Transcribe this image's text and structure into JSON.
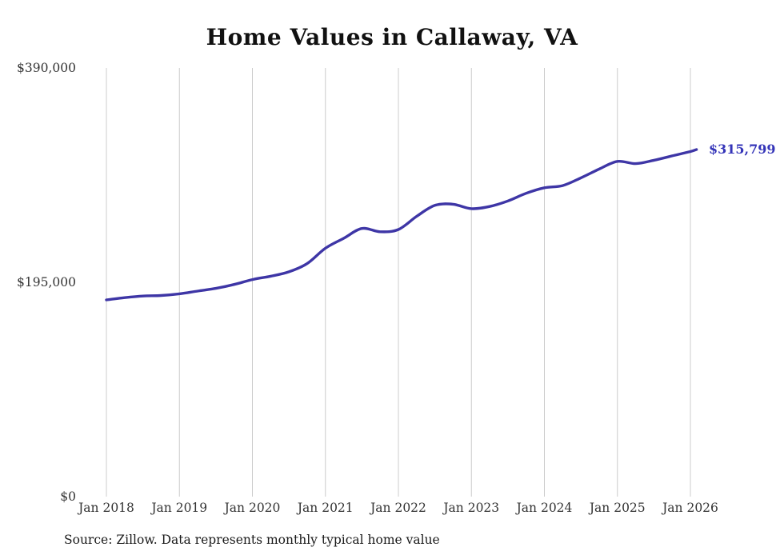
{
  "title": "Home Values in Callaway, VA",
  "end_label": "$315,799",
  "source_note": "Source: Zillow. Data represents monthly typical home value",
  "colors": {
    "line": "#3e36a6",
    "end_label": "#3434b8",
    "grid": "#cccccc",
    "tick_text": "#333333",
    "background": "#ffffff"
  },
  "chart_data": {
    "type": "line",
    "title": "Home Values in Callaway, VA",
    "series_name": "Typical home value",
    "x": [
      "2018-01",
      "2018-04",
      "2018-07",
      "2018-10",
      "2019-01",
      "2019-04",
      "2019-07",
      "2019-10",
      "2020-01",
      "2020-04",
      "2020-07",
      "2020-10",
      "2021-01",
      "2021-04",
      "2021-07",
      "2021-10",
      "2022-01",
      "2022-04",
      "2022-07",
      "2022-10",
      "2023-01",
      "2023-04",
      "2023-07",
      "2023-10",
      "2024-01",
      "2024-04",
      "2024-07",
      "2024-10",
      "2025-01",
      "2025-04",
      "2025-07",
      "2025-10",
      "2026-01",
      "2026-02"
    ],
    "values": [
      179000,
      181000,
      182500,
      183000,
      184500,
      187000,
      189500,
      193000,
      197500,
      200500,
      204500,
      212000,
      226000,
      235000,
      244000,
      241000,
      243000,
      255000,
      265000,
      266000,
      262000,
      264000,
      269000,
      276000,
      281000,
      283000,
      290000,
      298000,
      305000,
      303000,
      306000,
      310000,
      314000,
      315799
    ],
    "latest_value": 315799,
    "ylim": [
      0,
      390000
    ],
    "yticks": [
      {
        "value": 0,
        "label": "$0"
      },
      {
        "value": 195000,
        "label": "$195,000"
      },
      {
        "value": 390000,
        "label": "$390,000"
      }
    ],
    "xticks": [
      {
        "date": "2018-01",
        "label": "Jan 2018"
      },
      {
        "date": "2019-01",
        "label": "Jan 2019"
      },
      {
        "date": "2020-01",
        "label": "Jan 2020"
      },
      {
        "date": "2021-01",
        "label": "Jan 2021"
      },
      {
        "date": "2022-01",
        "label": "Jan 2022"
      },
      {
        "date": "2023-01",
        "label": "Jan 2023"
      },
      {
        "date": "2024-01",
        "label": "Jan 2024"
      },
      {
        "date": "2025-01",
        "label": "Jan 2025"
      },
      {
        "date": "2026-01",
        "label": "Jan 2026"
      }
    ],
    "grid": "vertical-only",
    "legend": "none",
    "annotation": {
      "text": "$315,799",
      "x": "2026-02"
    }
  }
}
